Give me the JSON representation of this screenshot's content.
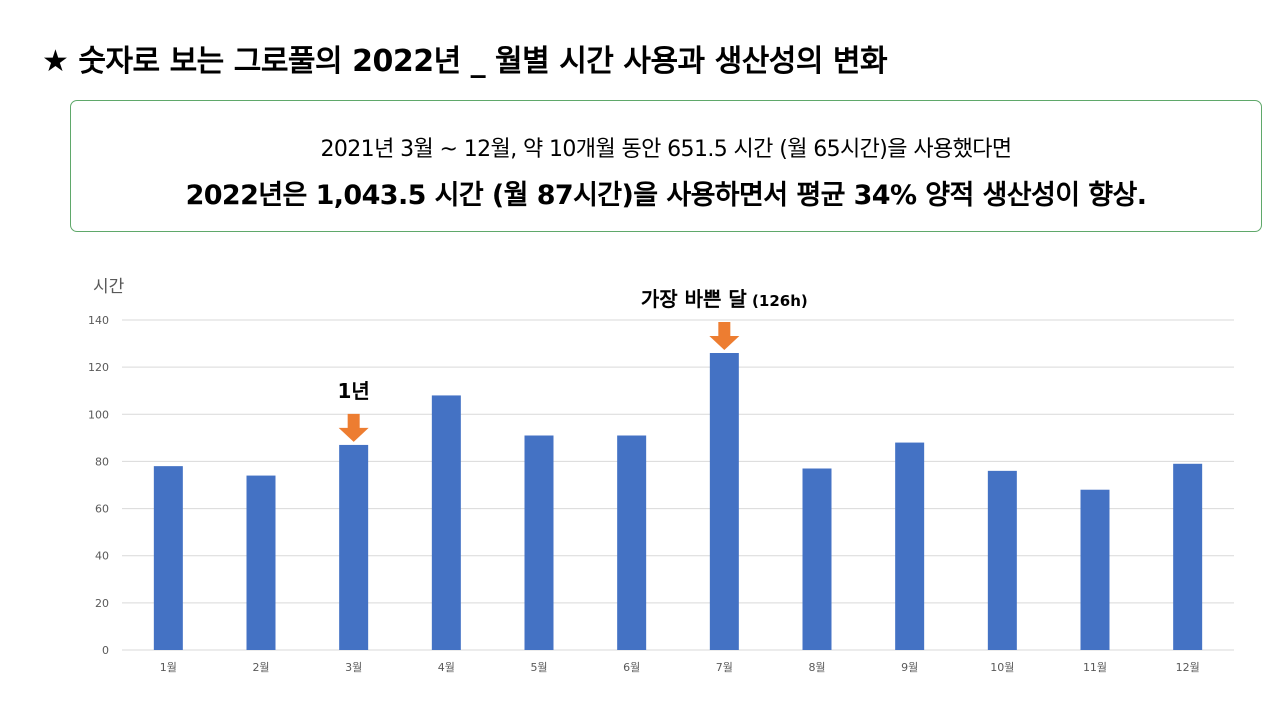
{
  "header": {
    "title": "★ 숫자로 보는 그로풀의 2022년 _ 월별 시간 사용과 생산성의 변화"
  },
  "summary": {
    "line1": "2021년 3월 ~ 12월, 약 10개월 동안 651.5 시간 (월 65시간)을 사용했다면",
    "line2": "2022년은 1,043.5 시간 (월 87시간)을 사용하면서 평균 34% 양적 생산성이 향상."
  },
  "colors": {
    "bar": "#4472c4",
    "arrow": "#ed7d31",
    "grid": "#d9d9d9",
    "box_border": "#5fa86a"
  },
  "chart_data": {
    "type": "bar",
    "ylabel": "시간",
    "ylim": [
      0,
      140
    ],
    "yticks": [
      0,
      20,
      40,
      60,
      80,
      100,
      120,
      140
    ],
    "grid": true,
    "categories": [
      "1월",
      "2월",
      "3월",
      "4월",
      "5월",
      "6월",
      "7월",
      "8월",
      "9월",
      "10월",
      "11월",
      "12월"
    ],
    "values": [
      78,
      74,
      87,
      108,
      91,
      91,
      126,
      77,
      88,
      76,
      68,
      79
    ],
    "annotations": [
      {
        "category": "3월",
        "label": "1년",
        "sub": ""
      },
      {
        "category": "7월",
        "label": "가장 바쁜 달",
        "sub": "(126h)"
      }
    ]
  }
}
